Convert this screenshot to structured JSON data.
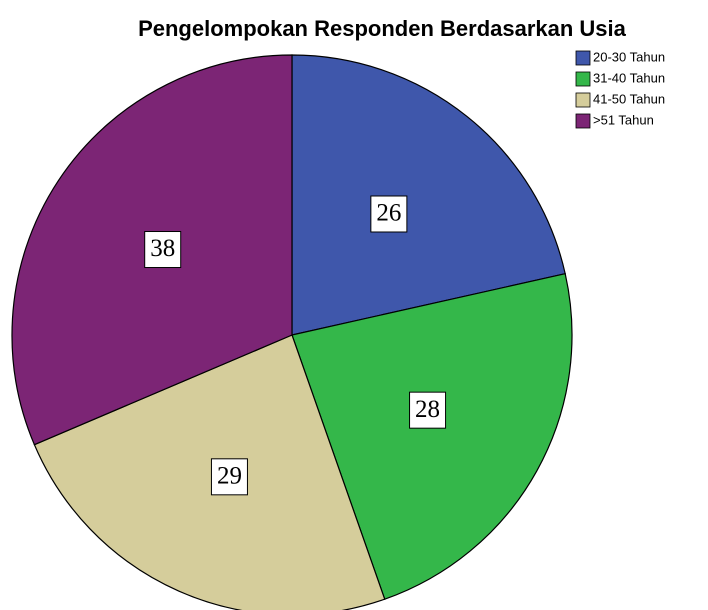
{
  "chart_data": {
    "type": "pie",
    "title": "Pengelompokan Responden Berdasarkan Usia",
    "categories": [
      "20-30 Tahun",
      "31-40 Tahun",
      "41-50 Tahun",
      ">51 Tahun"
    ],
    "values": [
      26,
      28,
      29,
      38
    ],
    "colors": [
      "#3f57ab",
      "#34b74a",
      "#d5cd9b",
      "#7c2575"
    ],
    "legend": "top-right"
  }
}
